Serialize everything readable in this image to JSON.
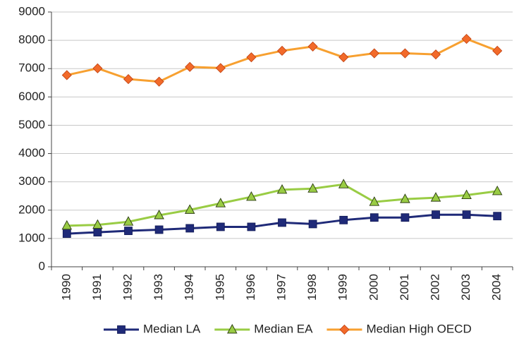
{
  "chart_data": {
    "type": "line",
    "categories": [
      "1990",
      "1991",
      "1992",
      "1993",
      "1994",
      "1995",
      "1996",
      "1997",
      "1998",
      "1999",
      "2000",
      "2001",
      "2002",
      "2003",
      "2004"
    ],
    "series": [
      {
        "name": "Median LA",
        "color": "#1f2a78",
        "marker": "square",
        "marker_color": "#1f2a78",
        "values": [
          1170,
          1220,
          1270,
          1310,
          1360,
          1410,
          1410,
          1560,
          1510,
          1650,
          1740,
          1740,
          1840,
          1840,
          1790
        ]
      },
      {
        "name": "Median EA",
        "color": "#99cc44",
        "marker": "triangle",
        "marker_color": "#99cc44",
        "values": [
          1450,
          1480,
          1590,
          1820,
          2010,
          2240,
          2470,
          2720,
          2760,
          2910,
          2290,
          2390,
          2440,
          2530,
          2670
        ]
      },
      {
        "name": "Median High OECD",
        "color": "#f7a030",
        "marker": "diamond",
        "marker_color": "#f26a2a",
        "values": [
          6770,
          7010,
          6630,
          6540,
          7060,
          7020,
          7400,
          7630,
          7780,
          7400,
          7540,
          7540,
          7500,
          8050,
          7630
        ]
      }
    ],
    "ylim": [
      0,
      9000
    ],
    "yticks": [
      0,
      1000,
      2000,
      3000,
      4000,
      5000,
      6000,
      7000,
      8000,
      9000
    ],
    "grid": true,
    "legend": "bottom"
  }
}
